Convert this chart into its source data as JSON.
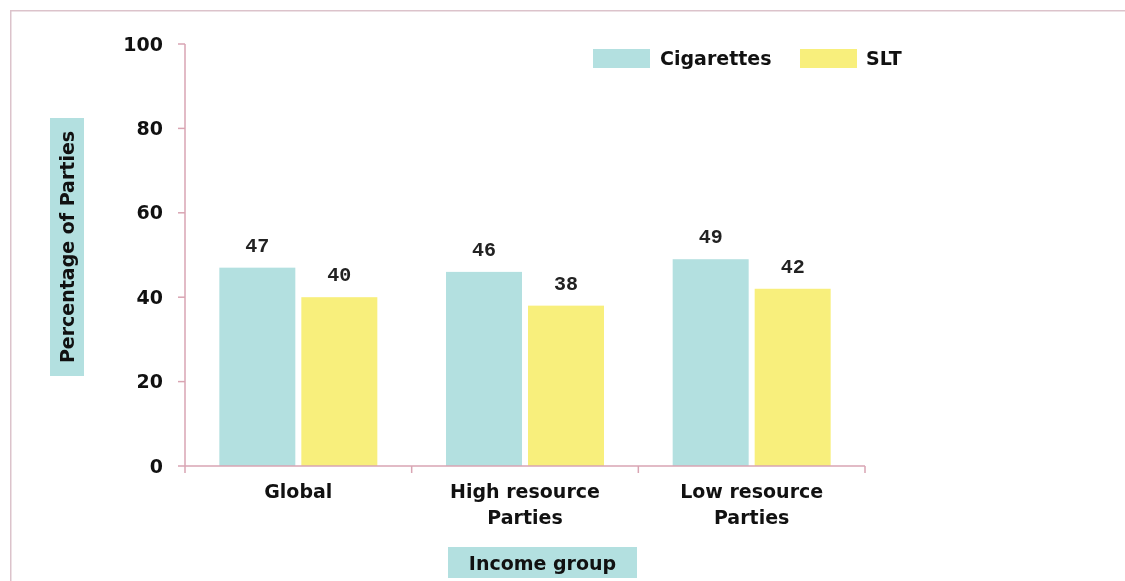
{
  "chart_data": {
    "type": "bar",
    "xlabel": "Income group",
    "ylabel": "Percentage of Parties",
    "categories": [
      "Global",
      "High resource\nParties",
      "Low resource\nParties"
    ],
    "series": [
      {
        "name": "Cigarettes",
        "color": "#b3e0e0",
        "values": [
          47,
          46,
          49
        ]
      },
      {
        "name": "SLT",
        "color": "#f8ef7c",
        "values": [
          40,
          38,
          42
        ]
      }
    ],
    "ylim": [
      0,
      100
    ],
    "yticks": [
      0,
      20,
      40,
      60,
      80,
      100
    ],
    "data_labels": true,
    "legend": "top right",
    "grid": false
  }
}
